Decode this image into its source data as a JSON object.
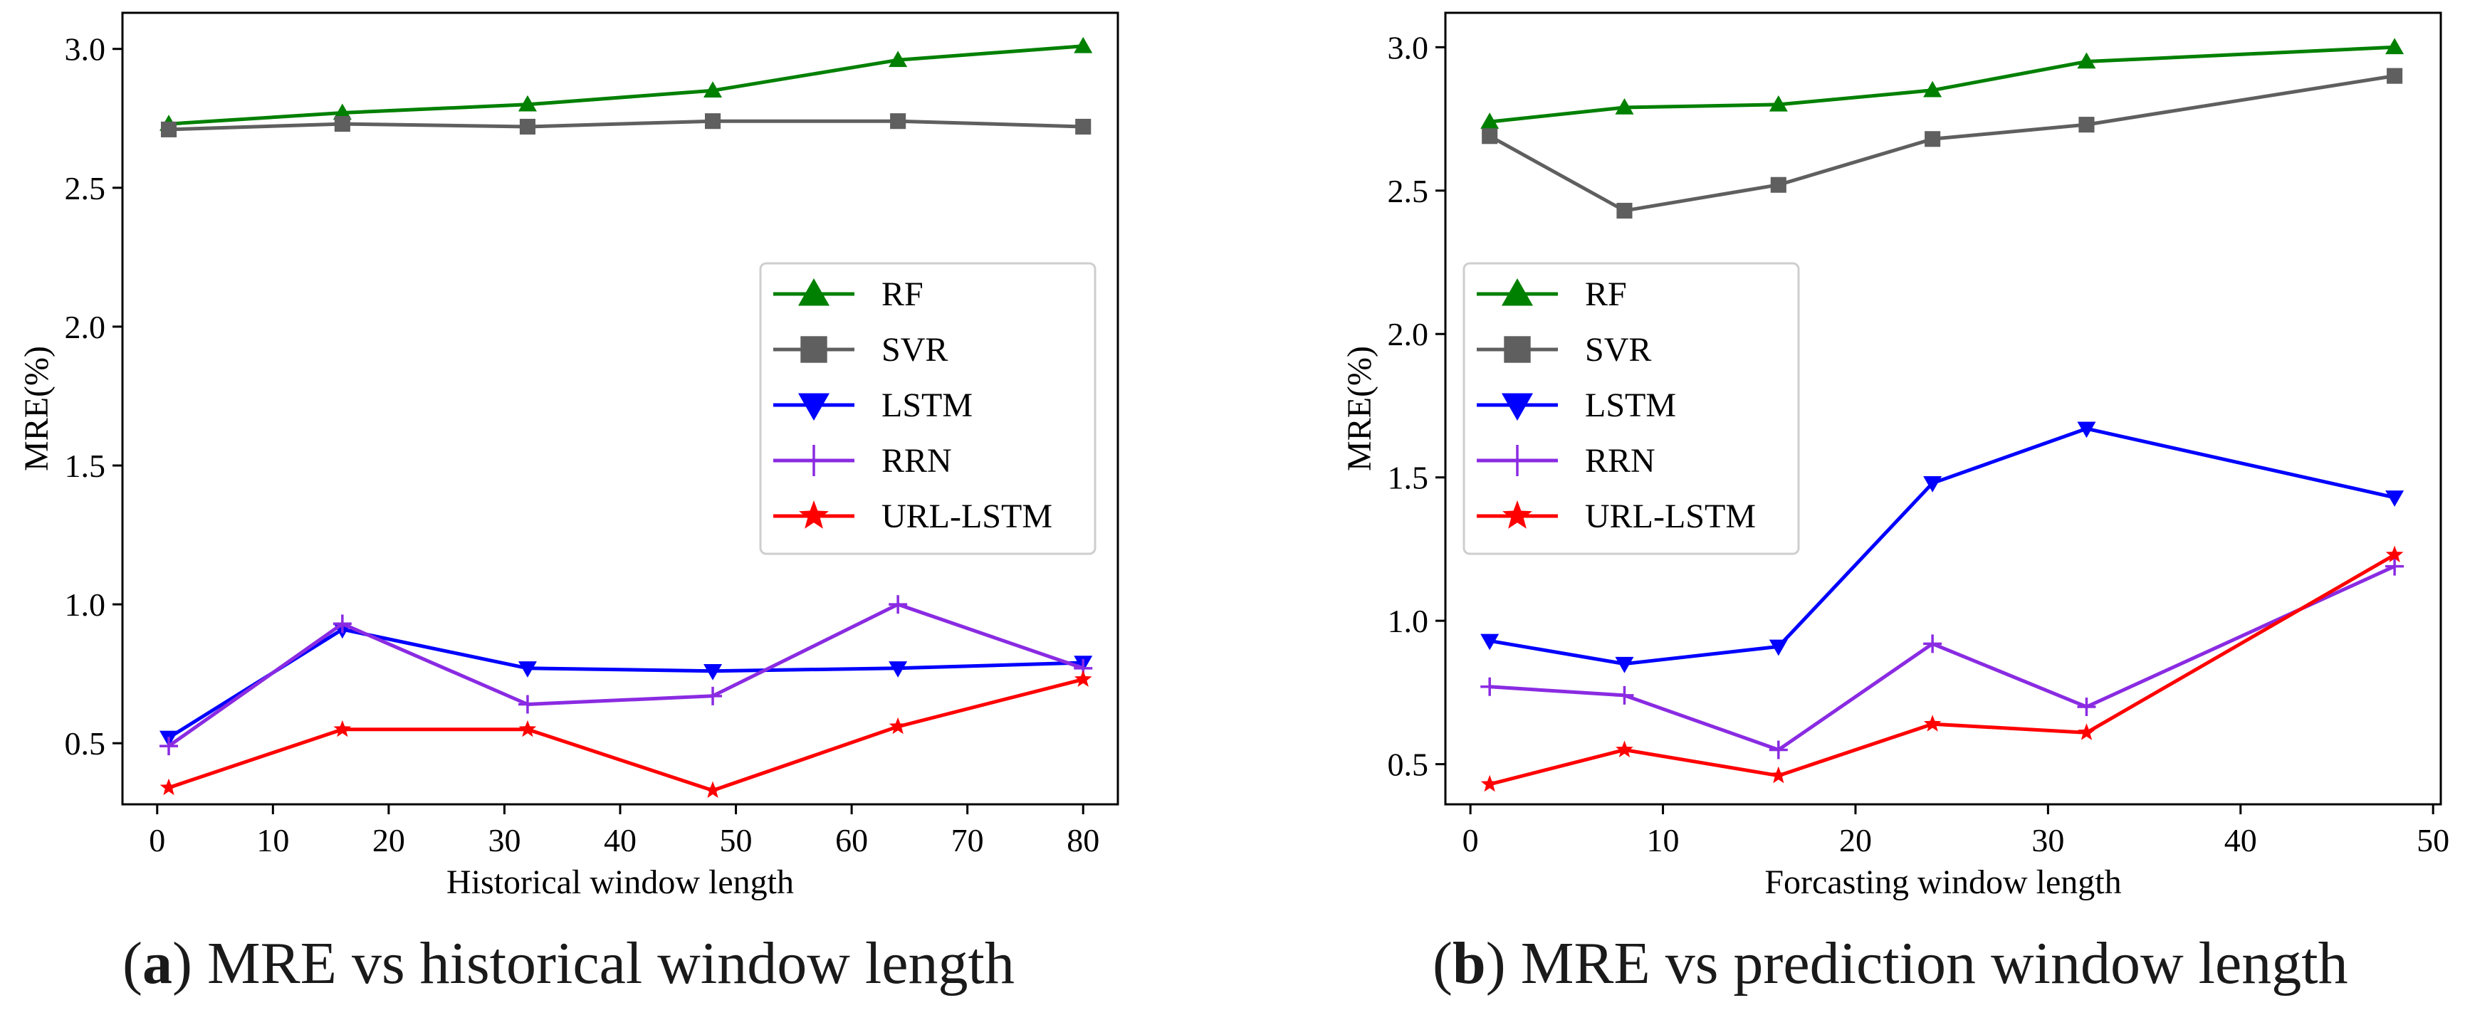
{
  "chart_data": [
    {
      "type": "line",
      "panel": "a",
      "xlabel": "Historical window length",
      "ylabel": "MRE(%)",
      "xlim": [
        -3,
        83
      ],
      "ylim": [
        0.28,
        3.13
      ],
      "xticks": [
        0,
        10,
        20,
        30,
        40,
        50,
        60,
        70,
        80
      ],
      "yticks": [
        0.5,
        1.0,
        1.5,
        2.0,
        2.5,
        3.0
      ],
      "ytick_labels": [
        "0.5",
        "1.0",
        "1.5",
        "2.0",
        "2.5",
        "3.0"
      ],
      "legend_position": "center-right",
      "x": [
        1,
        16,
        32,
        48,
        64,
        80
      ],
      "series": [
        {
          "name": "RF",
          "color": "#008000",
          "marker": "triangle-up",
          "values": [
            2.73,
            2.77,
            2.8,
            2.85,
            2.96,
            3.01
          ]
        },
        {
          "name": "SVR",
          "color": "#5f5f5f",
          "marker": "square",
          "values": [
            2.71,
            2.73,
            2.72,
            2.74,
            2.74,
            2.72
          ]
        },
        {
          "name": "LSTM",
          "color": "#0000ff",
          "marker": "triangle-down",
          "values": [
            0.52,
            0.91,
            0.77,
            0.76,
            0.77,
            0.79
          ]
        },
        {
          "name": "RRN",
          "color": "#8a2be2",
          "marker": "plus",
          "values": [
            0.49,
            0.93,
            0.64,
            0.67,
            1.0,
            0.77
          ]
        },
        {
          "name": "URL-LSTM",
          "color": "#ff0000",
          "marker": "star",
          "values": [
            0.34,
            0.55,
            0.55,
            0.33,
            0.56,
            0.73
          ]
        }
      ]
    },
    {
      "type": "line",
      "panel": "b",
      "xlabel": "Forcasting window length",
      "ylabel": "MRE(%)",
      "xlim": [
        -1.3,
        50.4
      ],
      "ylim": [
        0.36,
        3.12
      ],
      "xticks": [
        0,
        10,
        20,
        30,
        40,
        50
      ],
      "yticks": [
        0.5,
        1.0,
        1.5,
        2.0,
        2.5,
        3.0
      ],
      "ytick_labels": [
        "0.5",
        "1.0",
        "1.5",
        "2.0",
        "2.5",
        "3.0"
      ],
      "legend_position": "center-left",
      "x": [
        1,
        8,
        16,
        24,
        32,
        48
      ],
      "series": [
        {
          "name": "RF",
          "color": "#008000",
          "marker": "triangle-up",
          "values": [
            2.74,
            2.79,
            2.8,
            2.85,
            2.95,
            3.0
          ]
        },
        {
          "name": "SVR",
          "color": "#5f5f5f",
          "marker": "square",
          "values": [
            2.69,
            2.43,
            2.52,
            2.68,
            2.73,
            2.9
          ]
        },
        {
          "name": "LSTM",
          "color": "#0000ff",
          "marker": "triangle-down",
          "values": [
            0.93,
            0.85,
            0.91,
            1.48,
            1.67,
            1.43
          ]
        },
        {
          "name": "RRN",
          "color": "#8a2be2",
          "marker": "plus",
          "values": [
            0.77,
            0.74,
            0.55,
            0.92,
            0.7,
            1.19
          ]
        },
        {
          "name": "URL-LSTM",
          "color": "#ff0000",
          "marker": "star",
          "values": [
            0.43,
            0.55,
            0.46,
            0.64,
            0.61,
            1.23
          ]
        }
      ]
    }
  ],
  "captions": {
    "a": {
      "letter": "a",
      "text": " MRE vs historical window length"
    },
    "b": {
      "letter": "b",
      "text": " MRE vs prediction window length"
    }
  }
}
